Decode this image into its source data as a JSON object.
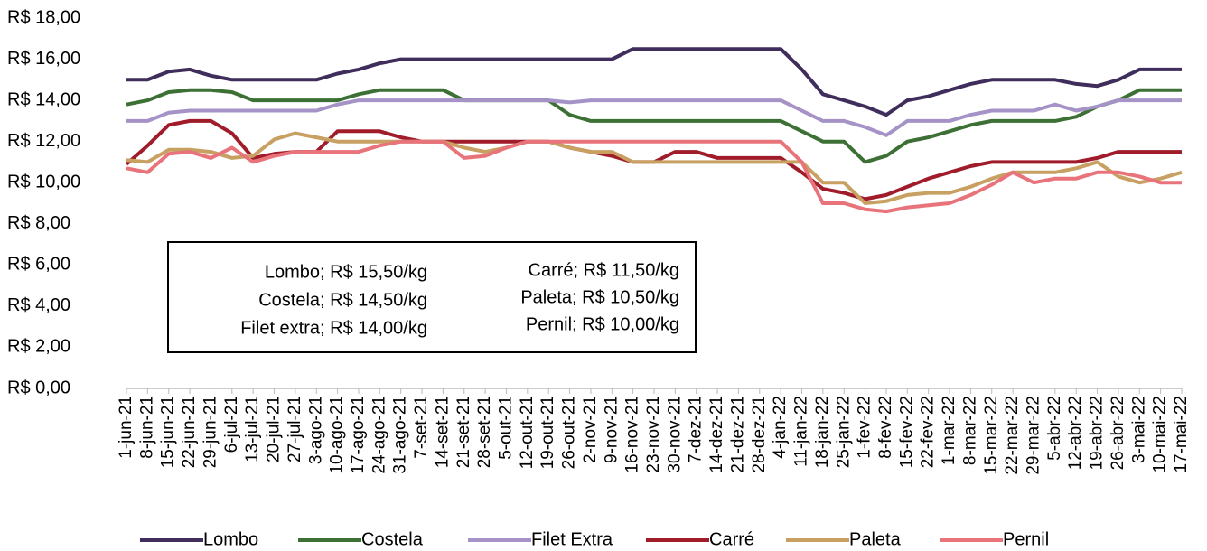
{
  "chart_data": {
    "type": "line",
    "categories": [
      "1-jun-21",
      "8-jun-21",
      "15-jun-21",
      "22-jun-21",
      "29-jun-21",
      "6-jul-21",
      "13-jul-21",
      "20-jul-21",
      "27-jul-21",
      "3-ago-21",
      "10-ago-21",
      "17-ago-21",
      "24-ago-21",
      "31-ago-21",
      "7-set-21",
      "14-set-21",
      "21-set-21",
      "28-set-21",
      "5-out-21",
      "12-out-21",
      "19-out-21",
      "26-out-21",
      "2-nov-21",
      "9-nov-21",
      "16-nov-21",
      "23-nov-21",
      "30-nov-21",
      "7-dez-21",
      "14-dez-21",
      "21-dez-21",
      "28-dez-21",
      "4-jan-22",
      "11-jan-22",
      "18-jan-22",
      "25-jan-22",
      "1-fev-22",
      "8-fev-22",
      "15-fev-22",
      "22-fev-22",
      "1-mar-22",
      "8-mar-22",
      "15-mar-22",
      "22-mar-22",
      "29-mar-22",
      "5-abr-22",
      "12-abr-22",
      "19-abr-22",
      "26-abr-22",
      "3-mai-22",
      "10-mai-22",
      "17-mai-22"
    ],
    "series": [
      {
        "name": "Lombo",
        "color": "#3f2d5b",
        "values": [
          15,
          15,
          15.4,
          15.5,
          15.2,
          15,
          15,
          15,
          15,
          15,
          15.3,
          15.5,
          15.8,
          16,
          16,
          16,
          16,
          16,
          16,
          16,
          16,
          16,
          16,
          16,
          16.5,
          16.5,
          16.5,
          16.5,
          16.5,
          16.5,
          16.5,
          16.5,
          15.5,
          14.3,
          14,
          13.7,
          13.3,
          14,
          14.2,
          14.5,
          14.8,
          15,
          15,
          15,
          15,
          14.8,
          14.7,
          15,
          15.5,
          15.5,
          15.5
        ]
      },
      {
        "name": "Costela",
        "color": "#3c7034",
        "values": [
          13.8,
          14,
          14.4,
          14.5,
          14.5,
          14.4,
          14,
          14,
          14,
          14,
          14,
          14.3,
          14.5,
          14.5,
          14.5,
          14.5,
          14,
          14,
          14,
          14,
          14,
          13.3,
          13,
          13,
          13,
          13,
          13,
          13,
          13,
          13,
          13,
          13,
          12.5,
          12,
          12,
          11,
          11.3,
          12,
          12.2,
          12.5,
          12.8,
          13,
          13,
          13,
          13,
          13.2,
          13.7,
          14,
          14.5,
          14.5,
          14.5
        ]
      },
      {
        "name": "Filet Extra",
        "color": "#a593c8",
        "values": [
          13,
          13,
          13.4,
          13.5,
          13.5,
          13.5,
          13.5,
          13.5,
          13.5,
          13.5,
          13.8,
          14,
          14,
          14,
          14,
          14,
          14,
          14,
          14,
          14,
          14,
          13.9,
          14,
          14,
          14,
          14,
          14,
          14,
          14,
          14,
          14,
          14,
          13.5,
          13,
          13,
          12.7,
          12.3,
          13,
          13,
          13,
          13.3,
          13.5,
          13.5,
          13.5,
          13.8,
          13.5,
          13.7,
          14,
          14,
          14,
          14
        ]
      },
      {
        "name": "Carré",
        "color": "#a01c2a",
        "values": [
          10.9,
          11.8,
          12.8,
          13,
          13,
          12.4,
          11.2,
          11.4,
          11.5,
          11.5,
          12.5,
          12.5,
          12.5,
          12.2,
          12,
          12,
          12,
          12,
          12,
          12,
          12,
          11.7,
          11.5,
          11.3,
          11,
          11,
          11.5,
          11.5,
          11.2,
          11.2,
          11.2,
          11.2,
          10.5,
          9.7,
          9.5,
          9.2,
          9.4,
          9.8,
          10.2,
          10.5,
          10.8,
          11,
          11,
          11,
          11,
          11,
          11.2,
          11.5,
          11.5,
          11.5,
          11.5
        ]
      },
      {
        "name": "Paleta",
        "color": "#c7a062",
        "values": [
          11.1,
          11,
          11.6,
          11.6,
          11.5,
          11.2,
          11.3,
          12.1,
          12.4,
          12.2,
          12,
          12,
          12,
          12,
          12,
          12,
          11.7,
          11.5,
          11.7,
          12,
          12,
          11.7,
          11.5,
          11.5,
          11,
          11,
          11,
          11,
          11,
          11,
          11,
          11,
          11,
          10,
          10,
          9,
          9.1,
          9.4,
          9.5,
          9.5,
          9.8,
          10.2,
          10.5,
          10.5,
          10.5,
          10.7,
          11,
          10.3,
          10,
          10.2,
          10.5
        ]
      },
      {
        "name": "Pernil",
        "color": "#e8737a",
        "values": [
          10.7,
          10.5,
          11.4,
          11.5,
          11.2,
          11.7,
          11,
          11.3,
          11.5,
          11.5,
          11.5,
          11.5,
          11.8,
          12,
          12,
          12,
          11.2,
          11.3,
          11.7,
          12,
          12,
          12,
          12,
          12,
          12,
          12,
          12,
          12,
          12,
          12,
          12,
          12,
          11,
          9,
          9,
          8.7,
          8.6,
          8.8,
          8.9,
          9,
          9.4,
          9.9,
          10.5,
          10,
          10.2,
          10.2,
          10.5,
          10.5,
          10.3,
          10,
          10
        ]
      }
    ],
    "ylim": [
      0,
      18
    ],
    "yticks": [
      {
        "value": 0,
        "label": "R$ 0,00"
      },
      {
        "value": 2,
        "label": "R$ 2,00"
      },
      {
        "value": 4,
        "label": "R$ 4,00"
      },
      {
        "value": 6,
        "label": "R$ 6,00"
      },
      {
        "value": 8,
        "label": "R$ 8,00"
      },
      {
        "value": 10,
        "label": "R$ 10,00"
      },
      {
        "value": 12,
        "label": "R$ 12,00"
      },
      {
        "value": 14,
        "label": "R$ 14,00"
      },
      {
        "value": 16,
        "label": "R$ 16,00"
      },
      {
        "value": 18,
        "label": "R$ 18,00"
      }
    ],
    "annotations": [
      "Lombo; R$ 15,50/kg",
      "Costela; R$ 14,50/kg",
      "Filet extra; R$ 14,00/kg",
      "Carré; R$ 11,50/kg",
      "Paleta; R$ 10,50/kg",
      "Pernil; R$ 10,00/kg"
    ],
    "legend": "bottom"
  }
}
